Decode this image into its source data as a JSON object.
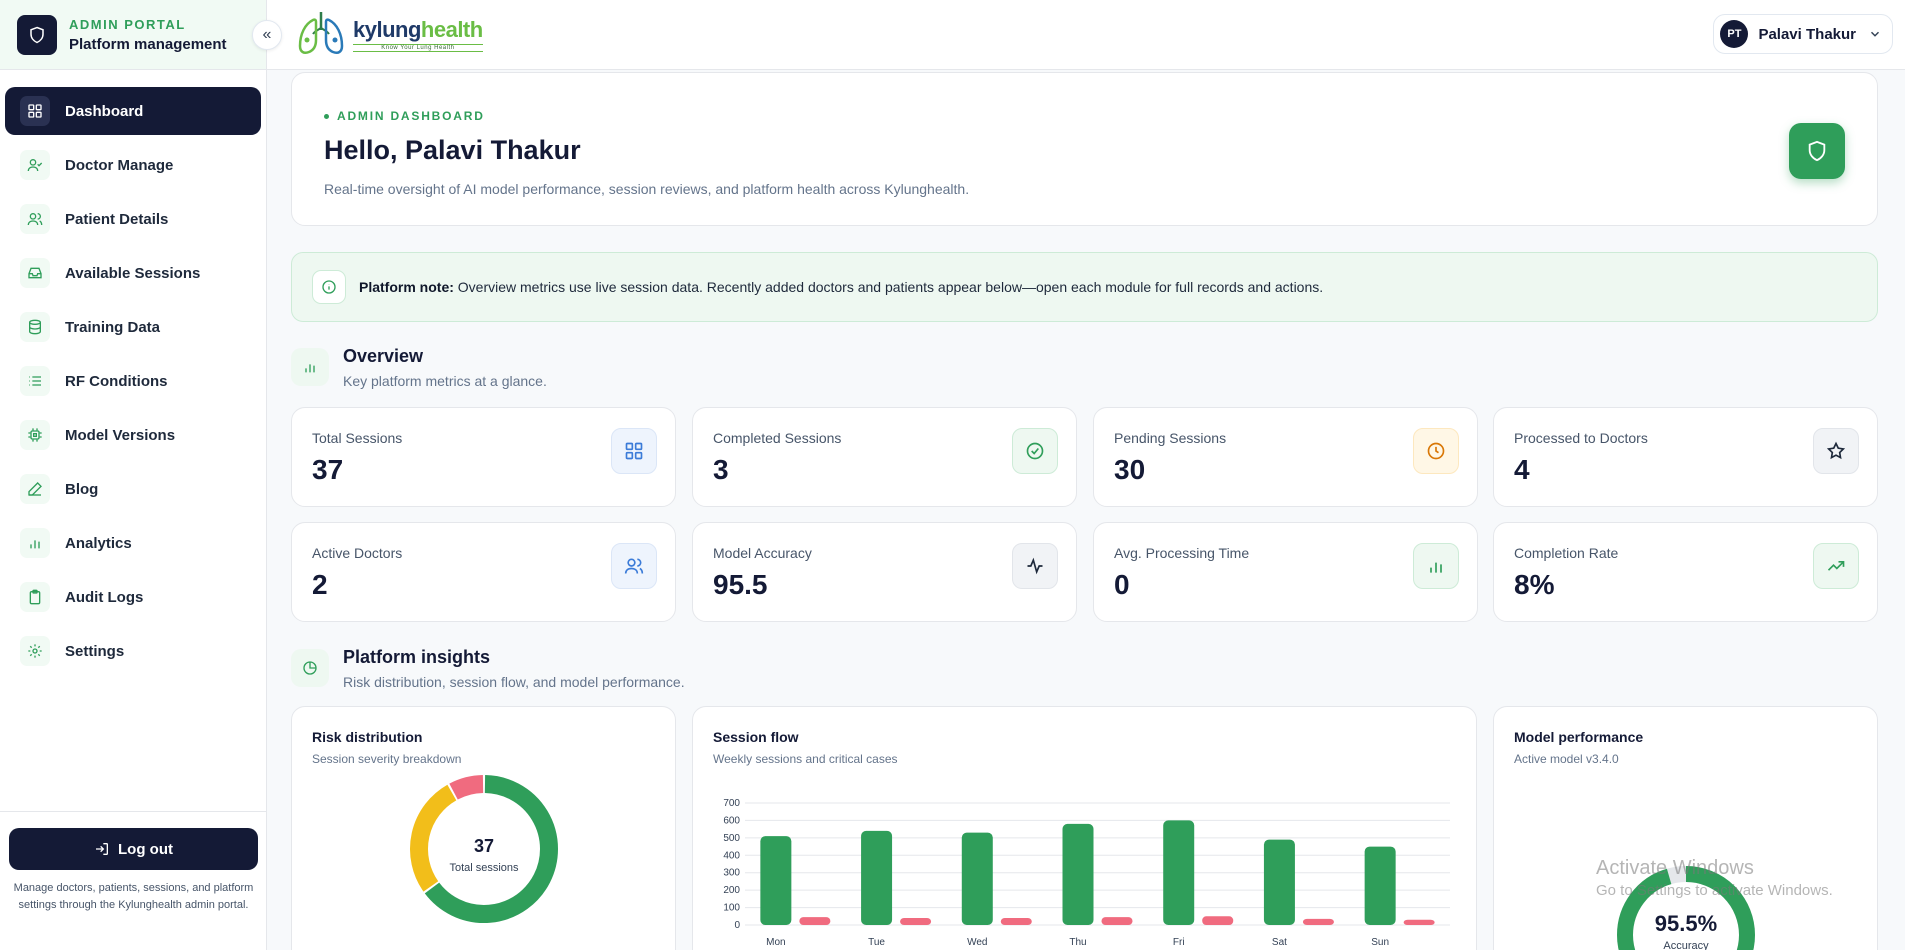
{
  "sidebar": {
    "kicker": "ADMIN PORTAL",
    "title": "Platform management",
    "collapse_glyph": "«",
    "items": [
      {
        "label": "Dashboard",
        "icon": "grid-icon",
        "active": true
      },
      {
        "label": "Doctor Manage",
        "icon": "user-check-icon"
      },
      {
        "label": "Patient Details",
        "icon": "users-icon"
      },
      {
        "label": "Available Sessions",
        "icon": "inbox-icon"
      },
      {
        "label": "Training Data",
        "icon": "database-icon"
      },
      {
        "label": "RF Conditions",
        "icon": "list-icon"
      },
      {
        "label": "Model Versions",
        "icon": "cpu-icon"
      },
      {
        "label": "Blog",
        "icon": "pen-icon"
      },
      {
        "label": "Analytics",
        "icon": "bar-chart-icon"
      },
      {
        "label": "Audit Logs",
        "icon": "clipboard-icon"
      },
      {
        "label": "Settings",
        "icon": "gear-icon"
      }
    ],
    "logout_label": "Log out",
    "footer_note": "Manage doctors, patients, sessions, and platform settings through the Kylunghealth admin portal."
  },
  "topbar": {
    "logo_part1": "kylung",
    "logo_part2": "health",
    "logo_tagline": "Know Your Lung Health",
    "user_initials": "PT",
    "user_name": "Palavi Thakur"
  },
  "hero": {
    "kicker": "ADMIN DASHBOARD",
    "title": "Hello, Palavi Thakur",
    "subtitle": "Real-time oversight of AI model performance, session reviews, and platform health across Kylunghealth."
  },
  "note": {
    "label": "Platform note:",
    "text": " Overview metrics use live session data. Recently added doctors and patients appear below—open each module for full records and actions."
  },
  "overview": {
    "title": "Overview",
    "subtitle": "Key platform metrics at a glance.",
    "metrics": [
      {
        "label": "Total Sessions",
        "value": "37",
        "icon": "grid-icon"
      },
      {
        "label": "Completed Sessions",
        "value": "3",
        "icon": "check-circle-icon"
      },
      {
        "label": "Pending Sessions",
        "value": "30",
        "icon": "clock-icon"
      },
      {
        "label": "Processed to Doctors",
        "value": "4",
        "icon": "star-icon"
      },
      {
        "label": "Active Doctors",
        "value": "2",
        "icon": "users-icon"
      },
      {
        "label": "Model Accuracy",
        "value": "95.5",
        "icon": "activity-icon"
      },
      {
        "label": "Avg. Processing Time",
        "value": "0",
        "icon": "bar-chart-icon"
      },
      {
        "label": "Completion Rate",
        "value": "8%",
        "icon": "trending-up-icon"
      }
    ]
  },
  "insights": {
    "title": "Platform insights",
    "subtitle": "Risk distribution, session flow, and model performance."
  },
  "risk": {
    "title": "Risk distribution",
    "subtitle": "Session severity breakdown",
    "center_value": "37",
    "center_label": "Total sessions"
  },
  "flow": {
    "title": "Session flow",
    "subtitle": "Weekly sessions and critical cases"
  },
  "model": {
    "title": "Model performance",
    "subtitle": "Active model v3.4.0",
    "value": "95.5%",
    "value_label": "Accuracy",
    "fraction": 0.955
  },
  "chart_data": [
    {
      "type": "pie",
      "title": "Risk distribution",
      "labels": [
        "",
        "",
        ""
      ],
      "values": [
        65,
        27,
        8
      ],
      "colors": [
        "#2f9e5a",
        "#f2be1a",
        "#f06b7f"
      ]
    },
    {
      "type": "bar",
      "title": "Session flow",
      "categories": [
        "Mon",
        "Tue",
        "Wed",
        "Thu",
        "Fri",
        "Sat",
        "Sun"
      ],
      "series": [
        {
          "values": [
            510,
            540,
            530,
            580,
            600,
            490,
            450
          ],
          "color": "#2f9e5a"
        },
        {
          "values": [
            45,
            40,
            40,
            45,
            50,
            35,
            30
          ],
          "color": "#f06b7f"
        }
      ],
      "ylim": [
        0,
        700
      ],
      "yticks": [
        0,
        100,
        200,
        300,
        400,
        500,
        600,
        700
      ],
      "grid": true
    }
  ],
  "watermark": {
    "line1": "Activate Windows",
    "line2": "Go to Settings to activate Windows."
  }
}
